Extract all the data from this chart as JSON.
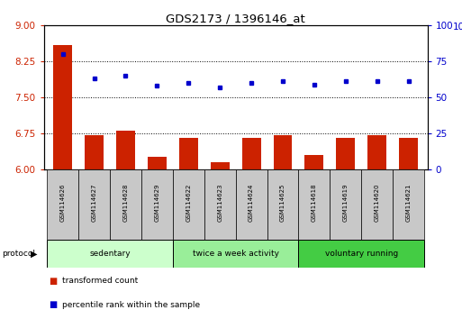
{
  "title": "GDS2173 / 1396146_at",
  "samples": [
    "GSM114626",
    "GSM114627",
    "GSM114628",
    "GSM114629",
    "GSM114622",
    "GSM114623",
    "GSM114624",
    "GSM114625",
    "GSM114618",
    "GSM114619",
    "GSM114620",
    "GSM114621"
  ],
  "transformed_count": [
    8.6,
    6.7,
    6.8,
    6.25,
    6.65,
    6.15,
    6.65,
    6.7,
    6.3,
    6.65,
    6.7,
    6.65
  ],
  "percentile_rank": [
    80,
    63,
    65,
    58,
    60,
    57,
    60,
    61,
    59,
    61,
    61,
    61
  ],
  "bar_color": "#cc2200",
  "dot_color": "#0000cc",
  "ylim_left": [
    6,
    9
  ],
  "ylim_right": [
    0,
    100
  ],
  "yticks_left": [
    6,
    6.75,
    7.5,
    8.25,
    9
  ],
  "yticks_right": [
    0,
    25,
    50,
    75,
    100
  ],
  "groups": [
    {
      "label": "sedentary",
      "start": 0,
      "end": 3,
      "color": "#ccffcc"
    },
    {
      "label": "twice a week activity",
      "start": 4,
      "end": 7,
      "color": "#99ee99"
    },
    {
      "label": "voluntary running",
      "start": 8,
      "end": 11,
      "color": "#44cc44"
    }
  ],
  "protocol_label": "protocol",
  "legend_bar_label": "transformed count",
  "legend_dot_label": "percentile rank within the sample",
  "bar_color_rgb": "#cc2200",
  "dot_color_rgb": "#0000cc",
  "tick_label_color_left": "#cc2200",
  "tick_label_color_right": "#0000cc",
  "bar_width": 0.6,
  "sample_box_color": "#c8c8c8",
  "fig_width": 5.13,
  "fig_height": 3.54,
  "dpi": 100
}
